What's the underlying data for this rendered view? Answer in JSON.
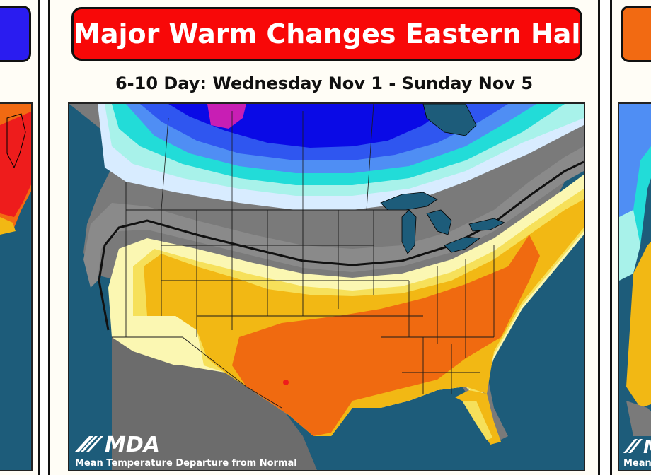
{
  "main_panel": {
    "headline": "Major Warm Changes Eastern Half",
    "subtitle": "6-10 Day: Wednesday Nov 1 - Sunday Nov 5",
    "banner_color": "#f80808",
    "logo_text": "MDA",
    "map_caption": "Mean Temperature Departure from Normal"
  },
  "left_panel": {
    "banner_color": "#2a1cf0"
  },
  "right_panel": {
    "logo_text": "MDA",
    "map_caption": "Mean",
    "banner_color": "#f26a12"
  },
  "colors": {
    "ocean": "#1d5c7a",
    "neutral_gray": "#7a7a7a",
    "dark_gray": "#5a5a5a",
    "magenta": "#c81eb4",
    "blue": "#0a0ae6",
    "medium_blue": "#2f56f0",
    "light_blue": "#4f8ef4",
    "cyan": "#22dcd8",
    "pale_cyan": "#a8f2ea",
    "pale_blue": "#d8ecff",
    "light_yellow": "#fbf7b2",
    "yellow": "#f6e05a",
    "gold": "#f2b814",
    "orange": "#f06a10",
    "red": "#ee1c1c"
  }
}
